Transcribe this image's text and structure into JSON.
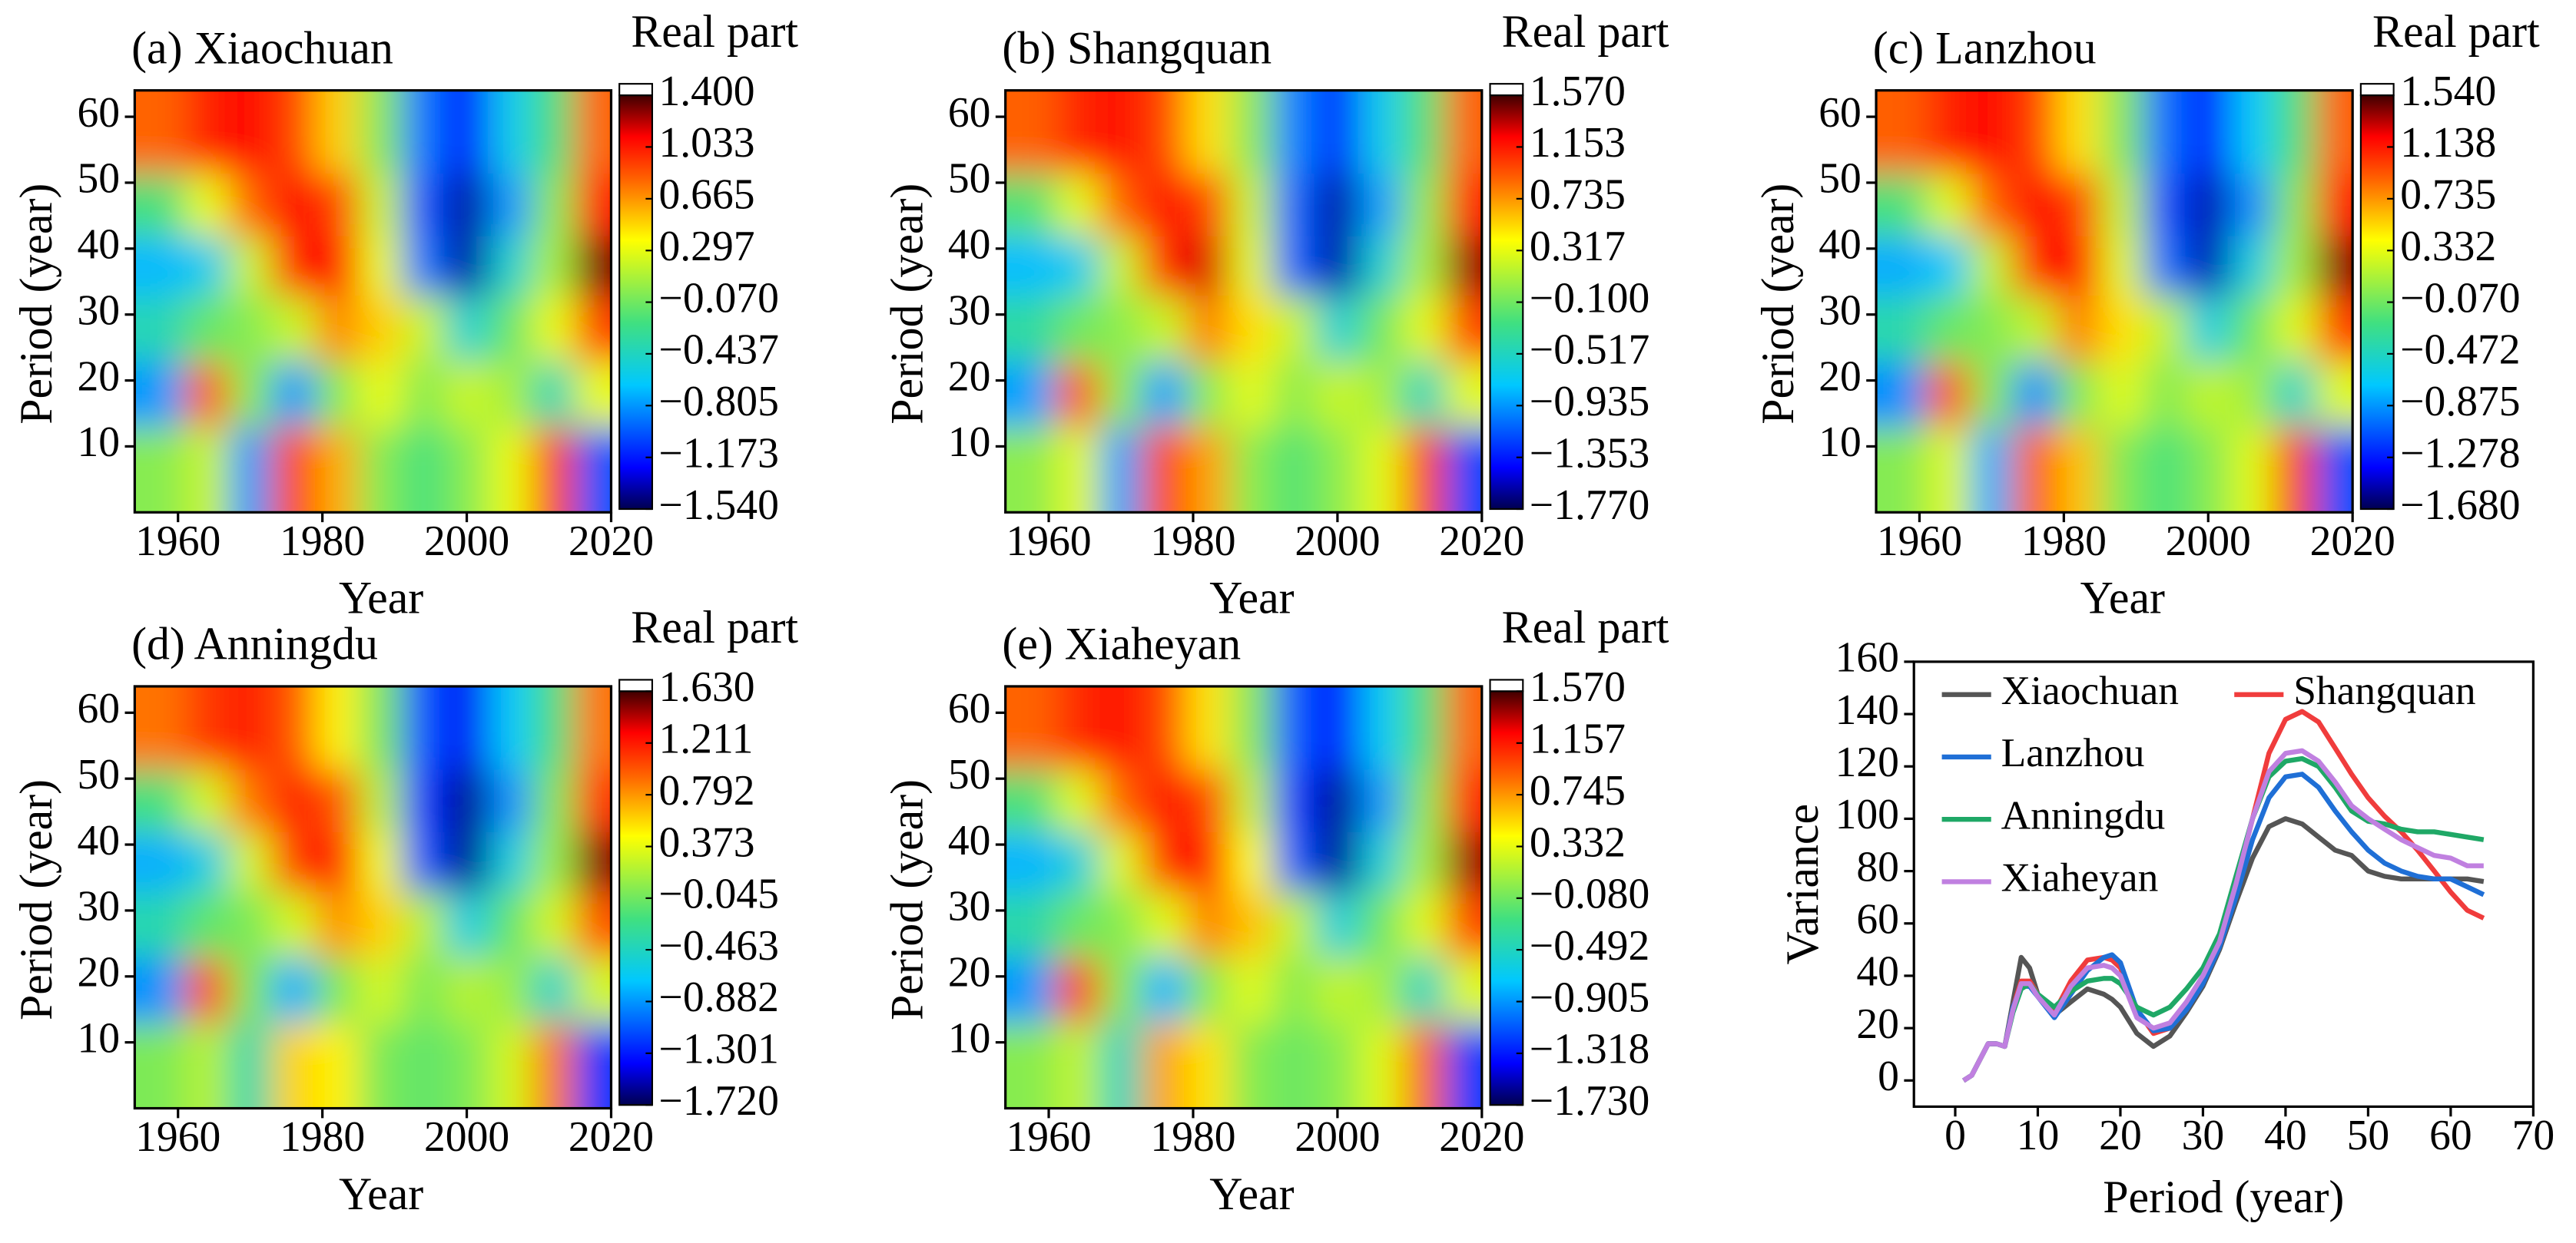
{
  "chart_data": [
    {
      "type": "heatmap",
      "title": "(a) Xiaochuan",
      "colorbar_label": "Real part",
      "xlabel": "Year",
      "ylabel": "Period (year)",
      "x": [
        1958,
        1964,
        1970,
        1976,
        1982,
        1988,
        1994,
        2000,
        2006,
        2012,
        2018
      ],
      "y": [
        8,
        18,
        28,
        38,
        46,
        57
      ],
      "z": [
        [
          0,
          0.2,
          -0.8,
          0.9,
          0.6,
          0,
          -0.2,
          0,
          0.3,
          0.9,
          -1.0
        ],
        [
          -0.8,
          0.8,
          0,
          -0.8,
          0,
          0.3,
          0,
          0.2,
          0.1,
          -0.4,
          0.3
        ],
        [
          -0.4,
          -0.1,
          0,
          0.2,
          0.7,
          0.5,
          0.2,
          -0.5,
          -0.1,
          0.3,
          0.9
        ],
        [
          -0.7,
          -0.6,
          0.2,
          1.0,
          1.1,
          0.3,
          -0.9,
          -1.4,
          -0.5,
          0.1,
          1.3
        ],
        [
          -0.2,
          0.3,
          0.8,
          1.1,
          0.9,
          0.2,
          -1.0,
          -1.4,
          -0.8,
          0,
          1.0
        ],
        [
          0.8,
          1.0,
          1.1,
          0.9,
          0.5,
          0,
          -0.9,
          -1.2,
          -0.6,
          -0.2,
          0.8
        ]
      ],
      "xlim": [
        1954,
        2020
      ],
      "ylim": [
        0,
        64
      ],
      "xticks": [
        1960,
        1980,
        2000,
        2020
      ],
      "yticks": [
        10,
        20,
        30,
        40,
        50,
        60
      ],
      "zlim": [
        -1.54,
        1.4
      ],
      "colormap": "jet",
      "zticks": [
        {
          "value": 1.4,
          "label": "1.400"
        },
        {
          "value": 1.033,
          "label": "1.033"
        },
        {
          "value": 0.665,
          "label": "0.665"
        },
        {
          "value": 0.297,
          "label": "0.297"
        },
        {
          "value": -0.07,
          "label": "−0.070"
        },
        {
          "value": -0.437,
          "label": "−0.437"
        },
        {
          "value": -0.805,
          "label": "−0.805"
        },
        {
          "value": -1.173,
          "label": "−1.173"
        },
        {
          "value": -1.54,
          "label": "−1.540"
        }
      ]
    },
    {
      "type": "heatmap",
      "title": "(b) Shangquan",
      "colorbar_label": "Real part",
      "xlabel": "Year",
      "ylabel": "Period (year)",
      "x": [
        1958,
        1964,
        1970,
        1976,
        1982,
        1988,
        1994,
        2000,
        2006,
        2012,
        2018
      ],
      "y": [
        8,
        18,
        28,
        38,
        46,
        57
      ],
      "z": [
        [
          0,
          0.3,
          -0.9,
          1.0,
          0.7,
          0,
          -0.2,
          0,
          0.3,
          1.0,
          -1.2
        ],
        [
          -0.9,
          0.9,
          0,
          -0.9,
          0,
          0.3,
          0,
          0.2,
          0.1,
          -0.5,
          0.3
        ],
        [
          -0.4,
          -0.1,
          0,
          0.2,
          0.8,
          0.5,
          0.2,
          -0.6,
          -0.1,
          0.3,
          1.0
        ],
        [
          -0.8,
          -0.7,
          0.2,
          1.1,
          1.3,
          0.3,
          -1.1,
          -1.6,
          -0.6,
          0.1,
          1.4
        ],
        [
          -0.2,
          0.3,
          0.9,
          1.2,
          1.0,
          0.2,
          -1.1,
          -1.6,
          -0.9,
          0,
          1.1
        ],
        [
          0.9,
          1.1,
          1.2,
          1.0,
          0.5,
          0,
          -1.0,
          -1.3,
          -0.7,
          -0.2,
          0.9
        ]
      ],
      "xlim": [
        1954,
        2020
      ],
      "ylim": [
        0,
        64
      ],
      "xticks": [
        1960,
        1980,
        2000,
        2020
      ],
      "yticks": [
        10,
        20,
        30,
        40,
        50,
        60
      ],
      "zlim": [
        -1.77,
        1.57
      ],
      "colormap": "jet",
      "zticks": [
        {
          "value": 1.57,
          "label": "1.570"
        },
        {
          "value": 1.153,
          "label": "1.153"
        },
        {
          "value": 0.735,
          "label": "0.735"
        },
        {
          "value": 0.317,
          "label": "0.317"
        },
        {
          "value": -0.1,
          "label": "−0.100"
        },
        {
          "value": -0.517,
          "label": "−0.517"
        },
        {
          "value": -0.935,
          "label": "−0.935"
        },
        {
          "value": -1.353,
          "label": "−1.353"
        },
        {
          "value": -1.77,
          "label": "−1.770"
        }
      ]
    },
    {
      "type": "heatmap",
      "title": "(c) Lanzhou",
      "colorbar_label": "Real part",
      "xlabel": "Year",
      "ylabel": "Period (year)",
      "x": [
        1958,
        1964,
        1970,
        1976,
        1982,
        1988,
        1994,
        2000,
        2006,
        2012,
        2018
      ],
      "y": [
        8,
        18,
        28,
        38,
        46,
        57
      ],
      "z": [
        [
          0,
          0.3,
          -0.8,
          0.9,
          0.6,
          0,
          -0.2,
          0,
          0.3,
          1.0,
          -1.1
        ],
        [
          -0.9,
          0.9,
          0,
          -0.9,
          0,
          0.3,
          0,
          0.2,
          0.1,
          -0.5,
          0.3
        ],
        [
          -0.4,
          -0.1,
          0,
          0.2,
          0.8,
          0.5,
          0.2,
          -0.6,
          -0.1,
          0.3,
          1.0
        ],
        [
          -0.8,
          -0.7,
          0.2,
          1.1,
          1.2,
          0.3,
          -1.0,
          -1.5,
          -0.6,
          0.1,
          1.4
        ],
        [
          -0.2,
          0.3,
          0.9,
          1.2,
          1.0,
          0.2,
          -1.1,
          -1.5,
          -0.9,
          0,
          1.1
        ],
        [
          0.9,
          1.1,
          1.2,
          1.0,
          0.5,
          0,
          -1.0,
          -1.3,
          -0.7,
          -0.2,
          0.9
        ]
      ],
      "xlim": [
        1954,
        2020
      ],
      "ylim": [
        0,
        64
      ],
      "xticks": [
        1960,
        1980,
        2000,
        2020
      ],
      "yticks": [
        10,
        20,
        30,
        40,
        50,
        60
      ],
      "zlim": [
        -1.68,
        1.54
      ],
      "colormap": "jet",
      "zticks": [
        {
          "value": 1.54,
          "label": "1.540"
        },
        {
          "value": 1.138,
          "label": "1.138"
        },
        {
          "value": 0.735,
          "label": "0.735"
        },
        {
          "value": 0.332,
          "label": "0.332"
        },
        {
          "value": -0.07,
          "label": "−0.070"
        },
        {
          "value": -0.472,
          "label": "−0.472"
        },
        {
          "value": -0.875,
          "label": "−0.875"
        },
        {
          "value": -1.278,
          "label": "−1.278"
        },
        {
          "value": -1.68,
          "label": "−1.680"
        }
      ]
    },
    {
      "type": "heatmap",
      "title": "(d) Anningdu",
      "colorbar_label": "Real part",
      "xlabel": "Year",
      "ylabel": "Period (year)",
      "x": [
        1958,
        1964,
        1970,
        1976,
        1982,
        1988,
        1994,
        2000,
        2006,
        2012,
        2018
      ],
      "y": [
        8,
        18,
        28,
        38,
        46,
        57
      ],
      "z": [
        [
          0,
          0.2,
          -0.4,
          0.6,
          0.5,
          0,
          -0.1,
          0,
          0.3,
          0.9,
          -1.2
        ],
        [
          -0.9,
          1.0,
          0,
          -0.8,
          0,
          0.3,
          0,
          0.2,
          0.1,
          -0.5,
          0.3
        ],
        [
          -0.4,
          -0.1,
          0,
          0.3,
          0.8,
          0.6,
          0.2,
          -0.6,
          -0.1,
          0.3,
          1.0
        ],
        [
          -0.8,
          -0.6,
          0.3,
          1.1,
          1.2,
          0.4,
          -1.1,
          -1.6,
          -0.6,
          0.1,
          1.5
        ],
        [
          -0.2,
          0.3,
          0.9,
          1.2,
          1.0,
          0.2,
          -1.2,
          -1.6,
          -0.9,
          0,
          1.1
        ],
        [
          0.9,
          1.1,
          1.2,
          1.0,
          0.5,
          0,
          -1.1,
          -1.4,
          -0.7,
          -0.2,
          0.9
        ]
      ],
      "xlim": [
        1954,
        2020
      ],
      "ylim": [
        0,
        64
      ],
      "xticks": [
        1960,
        1980,
        2000,
        2020
      ],
      "yticks": [
        10,
        20,
        30,
        40,
        50,
        60
      ],
      "zlim": [
        -1.72,
        1.63
      ],
      "colormap": "jet",
      "zticks": [
        {
          "value": 1.63,
          "label": "1.630"
        },
        {
          "value": 1.211,
          "label": "1.211"
        },
        {
          "value": 0.792,
          "label": "0.792"
        },
        {
          "value": 0.373,
          "label": "0.373"
        },
        {
          "value": -0.045,
          "label": "−0.045"
        },
        {
          "value": -0.463,
          "label": "−0.463"
        },
        {
          "value": -0.882,
          "label": "−0.882"
        },
        {
          "value": -1.301,
          "label": "−1.301"
        },
        {
          "value": -1.72,
          "label": "−1.720"
        }
      ]
    },
    {
      "type": "heatmap",
      "title": "(e) Xiaheyan",
      "colorbar_label": "Real part",
      "xlabel": "Year",
      "ylabel": "Period (year)",
      "x": [
        1958,
        1964,
        1970,
        1976,
        1982,
        1988,
        1994,
        2000,
        2006,
        2012,
        2018
      ],
      "y": [
        8,
        18,
        28,
        38,
        46,
        57
      ],
      "z": [
        [
          0,
          0.2,
          -0.5,
          0.7,
          0.5,
          0,
          -0.1,
          0,
          0.3,
          0.9,
          -1.2
        ],
        [
          -0.9,
          1.0,
          0,
          -0.8,
          0,
          0.3,
          0,
          0.2,
          0.1,
          -0.5,
          0.3
        ],
        [
          -0.4,
          -0.1,
          0,
          0.3,
          0.8,
          0.6,
          0.2,
          -0.6,
          -0.1,
          0.3,
          1.0
        ],
        [
          -0.8,
          -0.6,
          0.3,
          1.1,
          1.2,
          0.4,
          -1.1,
          -1.6,
          -0.6,
          0.1,
          1.4
        ],
        [
          -0.2,
          0.3,
          0.9,
          1.2,
          1.0,
          0.2,
          -1.2,
          -1.6,
          -0.9,
          0,
          1.1
        ],
        [
          0.9,
          1.1,
          1.2,
          1.0,
          0.5,
          0,
          -1.1,
          -1.4,
          -0.7,
          -0.2,
          0.9
        ]
      ],
      "xlim": [
        1954,
        2020
      ],
      "ylim": [
        0,
        64
      ],
      "xticks": [
        1960,
        1980,
        2000,
        2020
      ],
      "yticks": [
        10,
        20,
        30,
        40,
        50,
        60
      ],
      "zlim": [
        -1.73,
        1.57
      ],
      "colormap": "jet",
      "zticks": [
        {
          "value": 1.57,
          "label": "1.570"
        },
        {
          "value": 1.157,
          "label": "1.157"
        },
        {
          "value": 0.745,
          "label": "0.745"
        },
        {
          "value": 0.332,
          "label": "0.332"
        },
        {
          "value": -0.08,
          "label": "−0.080"
        },
        {
          "value": -0.492,
          "label": "−0.492"
        },
        {
          "value": -0.905,
          "label": "−0.905"
        },
        {
          "value": -1.318,
          "label": "−1.318"
        },
        {
          "value": -1.73,
          "label": "−1.730"
        }
      ]
    },
    {
      "type": "line",
      "xlabel": "Period (year)",
      "ylabel": "Variance",
      "x": [
        1,
        2,
        3,
        4,
        5,
        6,
        7,
        8,
        9,
        10,
        12,
        14,
        16,
        18,
        19,
        20,
        22,
        24,
        26,
        28,
        30,
        32,
        34,
        36,
        38,
        40,
        42,
        44,
        46,
        48,
        50,
        52,
        54,
        56,
        58,
        60,
        62,
        64
      ],
      "series": [
        {
          "name": "Xiaochuan",
          "color": "#555555",
          "values": [
            0,
            2,
            8,
            14,
            14,
            13,
            30,
            47,
            43,
            33,
            25,
            30,
            35,
            33,
            31,
            28,
            18,
            13,
            17,
            26,
            36,
            50,
            68,
            85,
            97,
            100,
            98,
            93,
            88,
            86,
            80,
            78,
            77,
            77,
            77,
            77,
            77,
            76
          ]
        },
        {
          "name": "Shangquan",
          "color": "#f03c3c",
          "values": [
            0,
            2,
            8,
            14,
            14,
            13,
            28,
            38,
            38,
            33,
            26,
            38,
            46,
            47,
            46,
            43,
            27,
            18,
            20,
            28,
            38,
            52,
            75,
            100,
            125,
            138,
            141,
            137,
            127,
            117,
            108,
            101,
            95,
            88,
            80,
            72,
            65,
            62
          ]
        },
        {
          "name": "Lanzhou",
          "color": "#1f6fd6",
          "values": [
            0,
            2,
            8,
            14,
            14,
            13,
            28,
            36,
            36,
            32,
            24,
            33,
            42,
            47,
            48,
            45,
            27,
            19,
            20,
            27,
            37,
            51,
            70,
            92,
            108,
            116,
            117,
            112,
            103,
            95,
            88,
            83,
            80,
            78,
            77,
            77,
            74,
            71
          ]
        },
        {
          "name": "Anningdu",
          "color": "#1fa866",
          "values": [
            0,
            2,
            8,
            14,
            14,
            13,
            26,
            35,
            37,
            33,
            28,
            34,
            38,
            39,
            39,
            37,
            28,
            25,
            28,
            35,
            43,
            56,
            78,
            100,
            116,
            122,
            123,
            120,
            112,
            103,
            99,
            98,
            96,
            95,
            95,
            94,
            93,
            92
          ]
        },
        {
          "name": "Xiaheyan",
          "color": "#c080e0",
          "values": [
            0,
            2,
            8,
            14,
            14,
            13,
            27,
            37,
            37,
            32,
            25,
            36,
            43,
            44,
            43,
            40,
            24,
            20,
            22,
            30,
            40,
            53,
            75,
            100,
            118,
            125,
            126,
            122,
            114,
            105,
            100,
            96,
            92,
            89,
            86,
            85,
            82,
            82
          ]
        }
      ],
      "xlim": [
        -5,
        70
      ],
      "ylim": [
        -10,
        160
      ],
      "xticks": [
        0,
        10,
        20,
        30,
        40,
        50,
        60,
        70
      ],
      "yticks": [
        0,
        20,
        40,
        60,
        80,
        100,
        120,
        140,
        160
      ],
      "legend": "top"
    }
  ]
}
